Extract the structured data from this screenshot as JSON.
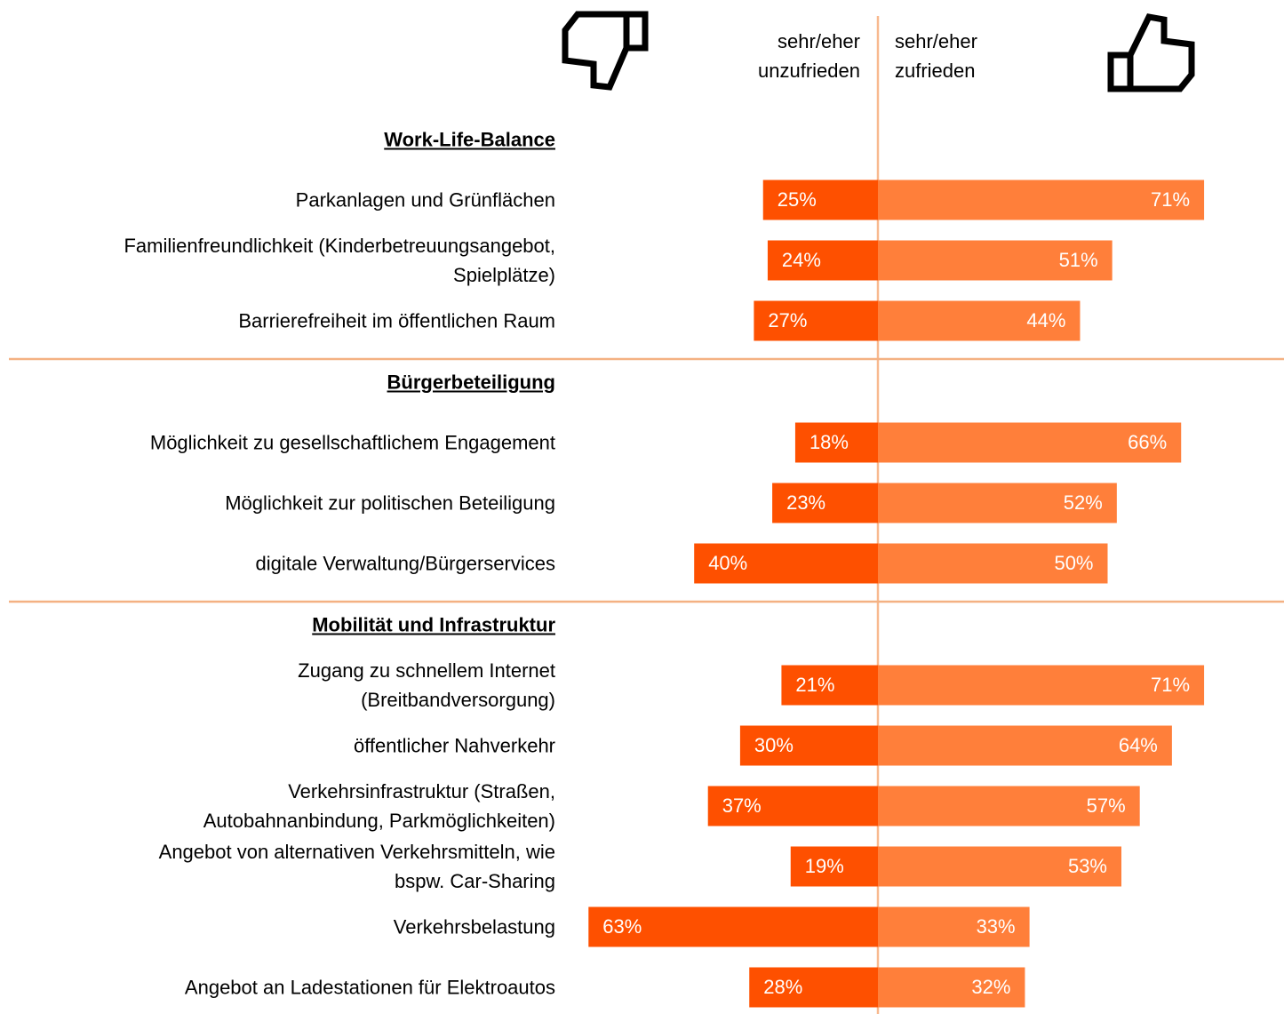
{
  "chart_data": {
    "type": "diverging-bar",
    "series": [
      {
        "name": "sehr/eher\nunzufrieden",
        "color": "#fe5000",
        "values": [
          25,
          24,
          27,
          18,
          23,
          40,
          21,
          30,
          37,
          19,
          63,
          28
        ],
        "value_labels": [
          "25%",
          "24%",
          "27%",
          "18%",
          "23%",
          "40%",
          "21%",
          "30%",
          "37%",
          "19%",
          "63%",
          "28%"
        ]
      },
      {
        "name": "sehr/eher\nzufrieden",
        "color": "#ff7f3a",
        "values": [
          71,
          51,
          44,
          66,
          52,
          50,
          71,
          64,
          57,
          53,
          33,
          32
        ],
        "value_labels": [
          "71%",
          "51%",
          "44%",
          "66%",
          "52%",
          "50%",
          "71%",
          "64%",
          "57%",
          "53%",
          "33%",
          "32%"
        ]
      }
    ],
    "groups": [
      {
        "title": "Work-Life-Balance",
        "categories": [
          "Parkanlagen und Grünflächen",
          "Familienfreundlichkeit (Kinderbetreuungsangebot,\nSpielplätze)",
          "Barrierefreiheit im öffentlichen Raum"
        ]
      },
      {
        "title": "Bürgerbeteiligung",
        "categories": [
          "Möglichkeit zu gesellschaftlichem Engagement",
          "Möglichkeit zur politischen Beteiligung",
          "digitale Verwaltung/Bürgerservices"
        ]
      },
      {
        "title": "Mobilität und Infrastruktur",
        "categories": [
          "Zugang zu schnellem Internet\n(Breitbandversorgung)",
          "öffentlicher Nahverkehr",
          "Verkehrsinfrastruktur (Straßen,\nAutobahnanbindung, Parkmöglichkeiten)",
          "Angebot von alternativen Verkehrsmitteln, wie\nbspw. Car-Sharing",
          "Verkehrsbelastung",
          "Angebot an Ladestationen für Elektroautos"
        ]
      }
    ]
  }
}
